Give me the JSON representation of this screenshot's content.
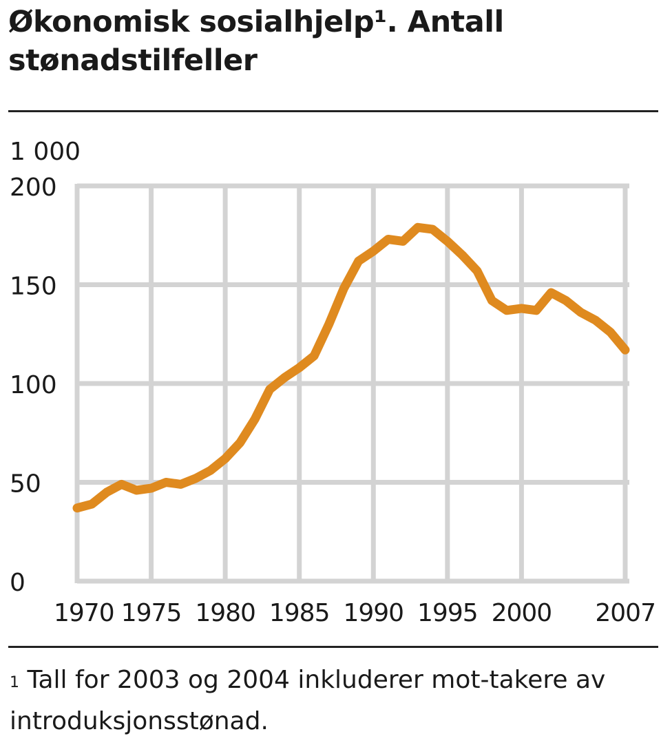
{
  "title": "Økonomisk sosialhjelp¹. Antall stønadstilfeller",
  "unit_label": "1 000",
  "footnote": {
    "marker": "1",
    "text": "Tall for 2003 og 2004 inkluderer mot-takere av introduksjonsstønad."
  },
  "colors": {
    "line": "#df8a1f",
    "grid": "#d3d3d3",
    "text": "#1a1a1a"
  },
  "chart_data": {
    "type": "line",
    "title": "Økonomisk sosialhjelp¹. Antall stønadstilfeller",
    "ylabel": "1 000",
    "xlabel": "",
    "xlim": [
      1970,
      2007
    ],
    "ylim": [
      0,
      200
    ],
    "grid": true,
    "yticks": [
      0,
      50,
      100,
      150,
      200
    ],
    "xticks": [
      1970,
      1975,
      1980,
      1985,
      1990,
      1995,
      2000,
      2007
    ],
    "xtick_labels": [
      "1970",
      "1975",
      "1980",
      "1985",
      "1990",
      "1995",
      "2000",
      "2007"
    ],
    "ytick_labels": [
      "0",
      "50",
      "100",
      "150",
      "200"
    ],
    "x": [
      1970,
      1971,
      1972,
      1973,
      1974,
      1975,
      1976,
      1977,
      1978,
      1979,
      1980,
      1981,
      1982,
      1983,
      1984,
      1985,
      1986,
      1987,
      1988,
      1989,
      1990,
      1991,
      1992,
      1993,
      1994,
      1995,
      1996,
      1997,
      1998,
      1999,
      2000,
      2001,
      2002,
      2003,
      2004,
      2005,
      2006,
      2007
    ],
    "series": [
      {
        "values": [
          37,
          39,
          45,
          49,
          46,
          47,
          50,
          49,
          52,
          56,
          62,
          70,
          82,
          97,
          103,
          108,
          114,
          130,
          148,
          162,
          167,
          173,
          172,
          179,
          178,
          172,
          165,
          157,
          142,
          137,
          138,
          137,
          146,
          142,
          136,
          132,
          126,
          117
        ]
      }
    ]
  }
}
